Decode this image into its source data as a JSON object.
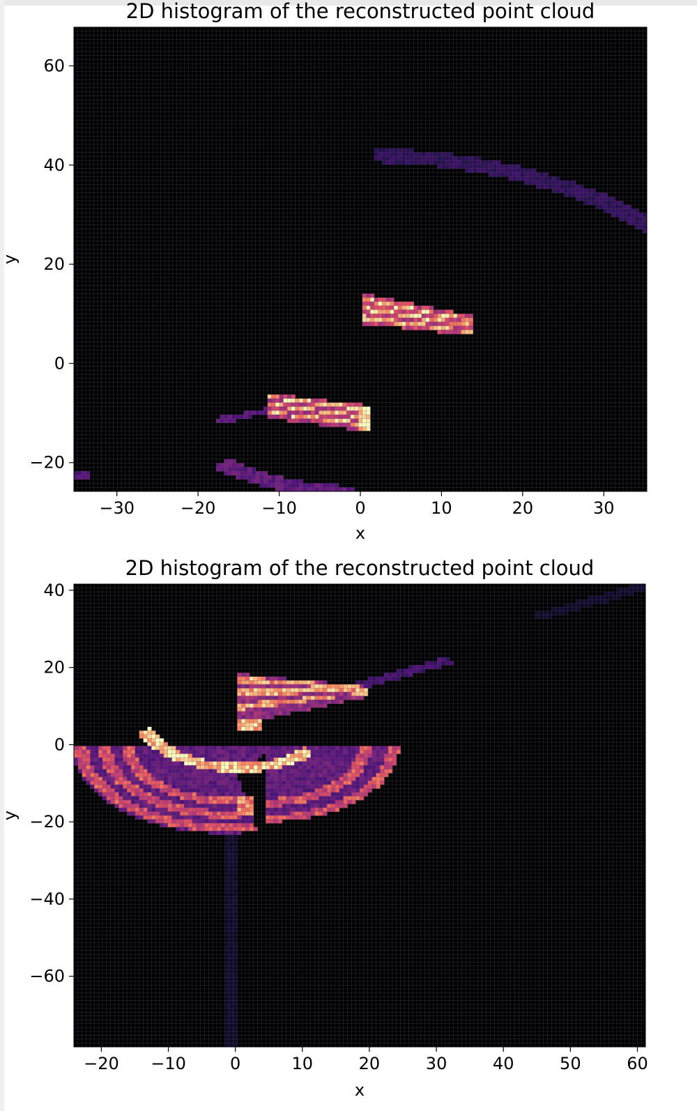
{
  "chart_data": [
    {
      "type": "heatmap",
      "title": "2D histogram of the reconstructed point cloud",
      "xlabel": "x",
      "ylabel": "y",
      "xlim": [
        -35.3,
        35.3
      ],
      "ylim": [
        -25.8,
        67.8
      ],
      "xticks": [
        -30,
        -20,
        -10,
        0,
        10,
        20,
        30
      ],
      "yticks": [
        -20,
        0,
        20,
        40,
        60
      ],
      "colormap": "magma",
      "background_color": "#000004",
      "grid": true,
      "features": [
        {
          "kind": "arc",
          "description": "faint far arc",
          "center": [
            0,
            -10
          ],
          "radius": 52,
          "start_deg": 88,
          "end_deg": 30,
          "thickness": 1.4,
          "intensity": 0.18,
          "band": 1
        },
        {
          "kind": "arc",
          "description": "lower arc",
          "center": [
            0,
            2
          ],
          "radius": 28,
          "start_deg": 232,
          "end_deg": 268,
          "thickness": 1.3,
          "intensity": 0.3,
          "band": 1
        },
        {
          "kind": "stripe_band",
          "description": "upper wedge",
          "x_range": [
            0.3,
            14
          ],
          "y_left": [
            8,
            14.2
          ],
          "y_right": [
            5.5,
            9.5
          ],
          "intensity": 0.55,
          "stripes": [
            0.2,
            0.5,
            0.78
          ],
          "stripe_intensity": 0.85
        },
        {
          "kind": "stripe_band",
          "description": "lower wedge",
          "x_range": [
            -11.5,
            1.2
          ],
          "y_left": [
            -11,
            -6
          ],
          "y_right": [
            -13.8,
            -8.5
          ],
          "intensity": 0.5,
          "stripes": [
            0.25,
            0.55,
            0.85
          ],
          "stripe_intensity": 0.85
        },
        {
          "kind": "stripe_band",
          "description": "wedge tail",
          "x_range": [
            -18,
            -11.5
          ],
          "y_left": [
            -12.5,
            -11
          ],
          "y_right": [
            -10,
            -9
          ],
          "intensity": 0.28,
          "stripes": [],
          "stripe_intensity": 0
        },
        {
          "kind": "blob",
          "description": "bright edge cells",
          "x_range": [
            0,
            1.2
          ],
          "y_range": [
            -13.4,
            -9
          ],
          "intensity": 0.95
        },
        {
          "kind": "blob",
          "description": "corner patch",
          "x_range": [
            -35.3,
            -33.5
          ],
          "y_range": [
            -23.5,
            -21.5
          ],
          "intensity": 0.25
        }
      ]
    },
    {
      "type": "heatmap",
      "title": "2D histogram of the reconstructed point cloud",
      "xlabel": "x",
      "ylabel": "y",
      "xlim": [
        -24.1,
        61.2
      ],
      "ylim": [
        -78.3,
        41.6
      ],
      "xticks": [
        -20,
        -10,
        0,
        10,
        20,
        30,
        40,
        50,
        60
      ],
      "yticks": [
        -60,
        -40,
        -20,
        0,
        20,
        40
      ],
      "colormap": "magma",
      "background_color": "#000004",
      "grid": true,
      "features": [
        {
          "kind": "half_disk",
          "description": "left fan",
          "center": [
            -1.5,
            0
          ],
          "radius": 23,
          "start_deg": 180,
          "end_deg": 282,
          "intensity": 0.3,
          "rings": [
            21.5,
            18,
            14.5
          ],
          "ring_intensity": 0.6
        },
        {
          "kind": "half_disk",
          "description": "right fan",
          "center": [
            4.5,
            0
          ],
          "radius": 20,
          "start_deg": 270,
          "end_deg": 360,
          "intensity": 0.3,
          "rings": [
            19.2,
            15
          ],
          "ring_intensity": 0.6
        },
        {
          "kind": "half_disk",
          "description": "centre fan",
          "center": [
            0,
            0
          ],
          "radius": 5,
          "start_deg": 180,
          "end_deg": 360,
          "intensity": 0.3,
          "rings": [],
          "ring_intensity": 0
        },
        {
          "kind": "stripe_band",
          "description": "upper wedge",
          "x_range": [
            0,
            20
          ],
          "y_left": [
            5,
            18.5
          ],
          "y_right": [
            12.5,
            15
          ],
          "intensity": 0.42,
          "stripes": [
            0.35,
            0.62,
            0.88
          ],
          "stripe_intensity": 0.8
        },
        {
          "kind": "arc",
          "description": "bright rim",
          "center": [
            0.5,
            9
          ],
          "radius": 15,
          "start_deg": 200,
          "end_deg": 315,
          "thickness": 1.2,
          "intensity": 0.9,
          "band": 1
        },
        {
          "kind": "line",
          "description": "faint ray",
          "from": [
            14,
            13
          ],
          "to": [
            32,
            22
          ],
          "thickness": 1.0,
          "intensity": 0.22
        },
        {
          "kind": "line",
          "description": "faint far ray",
          "from": [
            45,
            33
          ],
          "to": [
            61,
            41
          ],
          "thickness": 1.0,
          "intensity": 0.08
        },
        {
          "kind": "line",
          "description": "faint vertical trail",
          "from": [
            -0.8,
            -20
          ],
          "to": [
            -0.8,
            -78
          ],
          "thickness": 0.9,
          "intensity": 0.08
        },
        {
          "kind": "blob",
          "description": "bright centre cells",
          "x_range": [
            0,
            2.5
          ],
          "y_range": [
            -18,
            -13
          ],
          "intensity": 0.75
        },
        {
          "kind": "blob",
          "description": "bright upper cells",
          "x_range": [
            0,
            4
          ],
          "y_range": [
            4,
            7
          ],
          "intensity": 0.85
        }
      ]
    }
  ]
}
